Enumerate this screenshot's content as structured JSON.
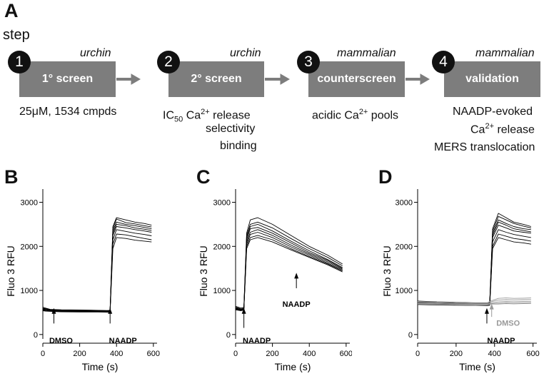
{
  "panel_a": {
    "letter": "A",
    "step_label": "step",
    "steps": [
      {
        "number": "1",
        "species": "urchin",
        "box": "1° screen",
        "caption": [
          "25μM, 1534 cmpds"
        ]
      },
      {
        "number": "2",
        "species": "urchin",
        "box": "2° screen",
        "caption_lines": {
          "ic": "IC",
          "sub": "50",
          "ca": " Ca",
          "sup": "2+",
          "rest": " release"
        },
        "caption": [
          "selectivity",
          "binding"
        ]
      },
      {
        "number": "3",
        "species": "mammalian",
        "box": "counterscreen",
        "caption_lines": {
          "pre": "acidic Ca",
          "sup": "2+",
          "post": " pools"
        }
      },
      {
        "number": "4",
        "species": "mammalian",
        "box": "validation",
        "caption_lines": {
          "l1": "NAADP-evoked",
          "l2a": "Ca",
          "sup": "2+",
          "l2b": " release",
          "l3": "MERS translocation"
        }
      }
    ]
  },
  "chart_data": [
    {
      "panel": "B",
      "type": "line",
      "xlabel": "Time (s)",
      "ylabel": "Fluo 3 RFU",
      "xlim": [
        0,
        620
      ],
      "ylim": [
        -100,
        3300
      ],
      "xticks": [
        0,
        200,
        400,
        600
      ],
      "yticks": [
        0,
        1000,
        2000,
        3000
      ],
      "annotations": [
        {
          "text": "DMSO",
          "x": 60,
          "color": "#000000"
        },
        {
          "text": "NAADP",
          "x": 365,
          "color": "#000000"
        }
      ],
      "trace_color": "#000000",
      "series": [
        {
          "x": [
            0,
            15,
            40,
            100,
            200,
            300,
            350,
            365,
            380,
            400,
            450,
            500,
            550,
            590
          ],
          "values": [
            620,
            600,
            570,
            560,
            555,
            550,
            545,
            550,
            2450,
            2650,
            2600,
            2550,
            2520,
            2480
          ]
        },
        {
          "x": [
            0,
            15,
            40,
            100,
            200,
            300,
            350,
            365,
            380,
            400,
            450,
            500,
            550,
            590
          ],
          "values": [
            590,
            575,
            560,
            550,
            545,
            540,
            540,
            545,
            2350,
            2550,
            2500,
            2470,
            2430,
            2400
          ]
        },
        {
          "x": [
            0,
            15,
            40,
            100,
            200,
            300,
            350,
            365,
            380,
            400,
            450,
            500,
            550,
            590
          ],
          "values": [
            570,
            560,
            550,
            540,
            535,
            530,
            530,
            535,
            2250,
            2450,
            2420,
            2380,
            2350,
            2320
          ]
        },
        {
          "x": [
            0,
            15,
            40,
            100,
            200,
            300,
            350,
            365,
            380,
            400,
            450,
            500,
            550,
            590
          ],
          "values": [
            560,
            545,
            540,
            530,
            525,
            525,
            520,
            525,
            2150,
            2380,
            2340,
            2300,
            2270,
            2240
          ]
        },
        {
          "x": [
            0,
            15,
            40,
            100,
            200,
            300,
            350,
            365,
            380,
            400,
            450,
            500,
            550,
            590
          ],
          "values": [
            550,
            535,
            530,
            520,
            515,
            515,
            515,
            520,
            2050,
            2280,
            2260,
            2220,
            2180,
            2150
          ]
        },
        {
          "x": [
            0,
            15,
            40,
            100,
            200,
            300,
            350,
            365,
            380,
            400,
            450,
            500,
            550,
            590
          ],
          "values": [
            540,
            530,
            525,
            515,
            510,
            510,
            505,
            510,
            1950,
            2200,
            2180,
            2140,
            2120,
            2100
          ]
        },
        {
          "x": [
            0,
            15,
            40,
            100,
            200,
            300,
            350,
            365,
            380,
            400,
            450,
            500,
            550,
            590
          ],
          "values": [
            600,
            585,
            565,
            555,
            550,
            545,
            540,
            540,
            2400,
            2620,
            2540,
            2510,
            2470,
            2440
          ]
        },
        {
          "x": [
            0,
            15,
            40,
            100,
            200,
            300,
            350,
            365,
            380,
            400,
            450,
            500,
            550,
            590
          ],
          "values": [
            580,
            570,
            555,
            545,
            540,
            535,
            535,
            540,
            2300,
            2500,
            2470,
            2420,
            2390,
            2360
          ]
        }
      ]
    },
    {
      "panel": "C",
      "type": "line",
      "xlabel": "Time (s)",
      "ylabel": "Fluo 3 RFU",
      "xlim": [
        0,
        620
      ],
      "ylim": [
        -100,
        3300
      ],
      "xticks": [
        0,
        200,
        400,
        600
      ],
      "yticks": [
        0,
        1000,
        2000,
        3000
      ],
      "annotations": [
        {
          "text": "NAADP",
          "x": 45,
          "color": "#000000"
        },
        {
          "text": "NAADP",
          "x": 330,
          "color": "#000000"
        }
      ],
      "trace_color": "#000000",
      "series": [
        {
          "x": [
            0,
            30,
            45,
            60,
            80,
            120,
            200,
            300,
            400,
            500,
            580
          ],
          "values": [
            640,
            600,
            620,
            2300,
            2600,
            2650,
            2500,
            2250,
            2000,
            1800,
            1600
          ]
        },
        {
          "x": [
            0,
            30,
            45,
            60,
            80,
            120,
            200,
            300,
            400,
            500,
            580
          ],
          "values": [
            620,
            580,
            600,
            2250,
            2500,
            2550,
            2420,
            2180,
            1950,
            1750,
            1560
          ]
        },
        {
          "x": [
            0,
            30,
            45,
            60,
            80,
            120,
            200,
            300,
            400,
            500,
            580
          ],
          "values": [
            610,
            570,
            590,
            2200,
            2450,
            2500,
            2350,
            2120,
            1900,
            1700,
            1520
          ]
        },
        {
          "x": [
            0,
            30,
            45,
            60,
            80,
            120,
            200,
            300,
            400,
            500,
            580
          ],
          "values": [
            600,
            560,
            580,
            2150,
            2400,
            2430,
            2300,
            2080,
            1860,
            1680,
            1500
          ]
        },
        {
          "x": [
            0,
            30,
            45,
            60,
            80,
            120,
            200,
            300,
            400,
            500,
            580
          ],
          "values": [
            590,
            555,
            575,
            2100,
            2320,
            2380,
            2250,
            2030,
            1830,
            1650,
            1480
          ]
        },
        {
          "x": [
            0,
            30,
            45,
            60,
            80,
            120,
            200,
            300,
            400,
            500,
            580
          ],
          "values": [
            580,
            550,
            570,
            2050,
            2270,
            2320,
            2200,
            1990,
            1800,
            1620,
            1460
          ]
        },
        {
          "x": [
            0,
            30,
            45,
            60,
            80,
            120,
            200,
            300,
            400,
            500,
            580
          ],
          "values": [
            570,
            545,
            560,
            2000,
            2200,
            2250,
            2150,
            1950,
            1770,
            1600,
            1440
          ]
        },
        {
          "x": [
            0,
            30,
            45,
            60,
            80,
            120,
            200,
            300,
            400,
            500,
            580
          ],
          "values": [
            560,
            540,
            555,
            1950,
            2150,
            2200,
            2100,
            1920,
            1750,
            1580,
            1420
          ]
        }
      ]
    },
    {
      "panel": "D",
      "type": "line",
      "xlabel": "Time (s)",
      "ylabel": "Fluo 3 RFU",
      "xlim": [
        0,
        620
      ],
      "ylim": [
        -100,
        3300
      ],
      "xticks": [
        0,
        200,
        400,
        600
      ],
      "yticks": [
        0,
        1000,
        2000,
        3000
      ],
      "annotations": [
        {
          "text": "NAADP",
          "x": 360,
          "color": "#000000"
        },
        {
          "text": "DMSO",
          "x": 385,
          "color": "#999999"
        }
      ],
      "series": [
        {
          "color": "#000000",
          "x": [
            0,
            100,
            200,
            300,
            360,
            375,
            390,
            420,
            460,
            500,
            550,
            590
          ],
          "values": [
            760,
            740,
            730,
            720,
            720,
            730,
            2400,
            2750,
            2650,
            2550,
            2500,
            2450
          ]
        },
        {
          "color": "#000000",
          "x": [
            0,
            100,
            200,
            300,
            360,
            375,
            390,
            420,
            460,
            500,
            550,
            590
          ],
          "values": [
            740,
            720,
            710,
            700,
            700,
            710,
            2300,
            2600,
            2520,
            2450,
            2400,
            2380
          ]
        },
        {
          "color": "#000000",
          "x": [
            0,
            100,
            200,
            300,
            360,
            375,
            390,
            420,
            460,
            500,
            550,
            590
          ],
          "values": [
            720,
            700,
            690,
            680,
            680,
            690,
            2200,
            2480,
            2420,
            2350,
            2320,
            2300
          ]
        },
        {
          "color": "#000000",
          "x": [
            0,
            100,
            200,
            300,
            360,
            375,
            390,
            420,
            460,
            500,
            550,
            590
          ],
          "values": [
            700,
            690,
            680,
            670,
            670,
            680,
            2100,
            2380,
            2320,
            2270,
            2230,
            2200
          ]
        },
        {
          "color": "#000000",
          "x": [
            0,
            100,
            200,
            300,
            360,
            375,
            390,
            420,
            460,
            500,
            550,
            590
          ],
          "values": [
            690,
            680,
            670,
            665,
            660,
            670,
            2000,
            2280,
            2230,
            2180,
            2150,
            2120
          ]
        },
        {
          "color": "#000000",
          "x": [
            0,
            100,
            200,
            300,
            360,
            375,
            390,
            420,
            460,
            500,
            550,
            590
          ],
          "values": [
            680,
            670,
            665,
            660,
            655,
            665,
            1950,
            2200,
            2150,
            2100,
            2080,
            2050
          ]
        },
        {
          "color": "#000000",
          "x": [
            0,
            100,
            200,
            300,
            360,
            375,
            390,
            420,
            460,
            500,
            550,
            590
          ],
          "values": [
            750,
            730,
            720,
            710,
            705,
            715,
            2350,
            2680,
            2600,
            2520,
            2460,
            2420
          ]
        },
        {
          "color": "#000000",
          "x": [
            0,
            100,
            200,
            300,
            360,
            375,
            390,
            420,
            460,
            500,
            550,
            590
          ],
          "values": [
            730,
            715,
            700,
            690,
            690,
            700,
            2250,
            2550,
            2480,
            2400,
            2360,
            2330
          ]
        },
        {
          "color": "#999999",
          "x": [
            0,
            100,
            200,
            300,
            360,
            380,
            420,
            460,
            500,
            550,
            590
          ],
          "values": [
            750,
            735,
            725,
            715,
            715,
            760,
            820,
            830,
            820,
            825,
            830
          ]
        },
        {
          "color": "#999999",
          "x": [
            0,
            100,
            200,
            300,
            360,
            380,
            420,
            460,
            500,
            550,
            590
          ],
          "values": [
            730,
            720,
            710,
            700,
            700,
            740,
            780,
            790,
            785,
            790,
            795
          ]
        },
        {
          "color": "#999999",
          "x": [
            0,
            100,
            200,
            300,
            360,
            380,
            420,
            460,
            500,
            550,
            590
          ],
          "values": [
            710,
            700,
            690,
            685,
            685,
            715,
            740,
            750,
            745,
            750,
            755
          ]
        },
        {
          "color": "#999999",
          "x": [
            0,
            100,
            200,
            300,
            360,
            380,
            420,
            460,
            500,
            550,
            590
          ],
          "values": [
            700,
            690,
            680,
            670,
            670,
            700,
            710,
            720,
            715,
            720,
            725
          ]
        },
        {
          "color": "#999999",
          "x": [
            0,
            100,
            200,
            300,
            360,
            380,
            420,
            460,
            500,
            550,
            590
          ],
          "values": [
            690,
            680,
            672,
            665,
            665,
            690,
            690,
            700,
            695,
            700,
            705
          ]
        }
      ]
    }
  ]
}
